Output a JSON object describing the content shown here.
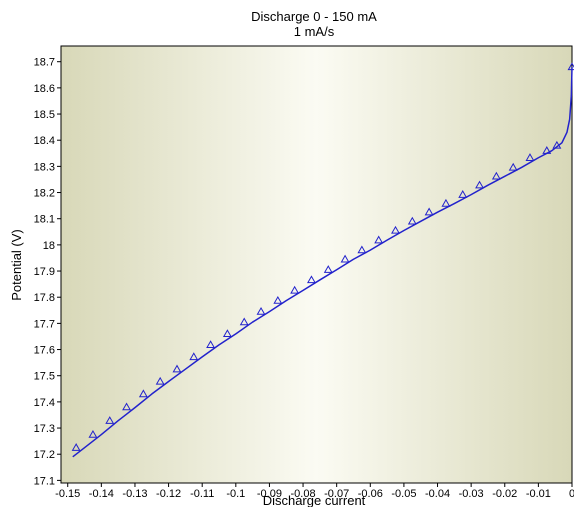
{
  "chart_data": {
    "type": "line",
    "title": "Discharge 0 - 150 mA",
    "subtitle": "1 mA/s",
    "xlabel": "Discharge current",
    "ylabel": "Potential (V)",
    "xlim": [
      -0.152,
      0.0
    ],
    "ylim": [
      17.09,
      18.76
    ],
    "x_ticks": [
      -0.15,
      -0.14,
      -0.13,
      -0.12,
      -0.11,
      -0.1,
      -0.09,
      -0.08,
      -0.07,
      -0.06,
      -0.05,
      -0.04,
      -0.03,
      -0.02,
      -0.01,
      0
    ],
    "x_tick_labels": [
      "-0.15",
      "-0.14",
      "-0.13",
      "-0.12",
      "-0.11",
      "-0.1",
      "-0.09",
      "-0.08",
      "-0.07",
      "-0.06",
      "-0.05",
      "-0.04",
      "-0.03",
      "-0.02",
      "-0.01",
      "0"
    ],
    "y_ticks": [
      17.1,
      17.2,
      17.3,
      17.4,
      17.5,
      17.6,
      17.7,
      17.8,
      17.9,
      18.0,
      18.1,
      18.2,
      18.3,
      18.4,
      18.5,
      18.6,
      18.7
    ],
    "y_tick_labels": [
      "17.1",
      "17.2",
      "17.3",
      "17.4",
      "17.5",
      "17.6",
      "17.7",
      "17.8",
      "17.9",
      "18",
      "18.1",
      "18.2",
      "18.3",
      "18.4",
      "18.5",
      "18.6",
      "18.7"
    ],
    "grid": false,
    "line_color": "#2222cc",
    "background_edge_color": "#d8d8b8",
    "background_center_color": "#fbfbf3",
    "series": [
      {
        "marker": "triangle",
        "line_x": [
          -0.1485,
          -0.145,
          -0.14,
          -0.135,
          -0.13,
          -0.125,
          -0.12,
          -0.115,
          -0.11,
          -0.105,
          -0.1,
          -0.095,
          -0.09,
          -0.085,
          -0.08,
          -0.075,
          -0.07,
          -0.065,
          -0.06,
          -0.055,
          -0.05,
          -0.045,
          -0.04,
          -0.035,
          -0.03,
          -0.025,
          -0.02,
          -0.015,
          -0.01,
          -0.006,
          -0.003,
          -0.0015,
          -0.0007,
          -0.0002,
          0.0
        ],
        "line_y": [
          17.19,
          17.225,
          17.275,
          17.328,
          17.378,
          17.43,
          17.478,
          17.525,
          17.572,
          17.618,
          17.66,
          17.705,
          17.745,
          17.787,
          17.826,
          17.866,
          17.905,
          17.945,
          17.98,
          18.018,
          18.055,
          18.09,
          18.125,
          18.158,
          18.192,
          18.228,
          18.262,
          18.296,
          18.333,
          18.36,
          18.39,
          18.43,
          18.48,
          18.57,
          18.68
        ],
        "marker_x": [
          -0.1475,
          -0.1425,
          -0.1375,
          -0.1325,
          -0.1275,
          -0.1225,
          -0.1175,
          -0.1125,
          -0.1075,
          -0.1025,
          -0.0975,
          -0.0925,
          -0.0875,
          -0.0825,
          -0.0775,
          -0.0725,
          -0.0675,
          -0.0625,
          -0.0575,
          -0.0525,
          -0.0475,
          -0.0425,
          -0.0375,
          -0.0325,
          -0.0275,
          -0.0225,
          -0.0175,
          -0.0125,
          -0.0075,
          -0.0045,
          0.0
        ],
        "marker_y": [
          17.225,
          17.275,
          17.328,
          17.38,
          17.43,
          17.478,
          17.525,
          17.572,
          17.618,
          17.66,
          17.705,
          17.745,
          17.787,
          17.826,
          17.866,
          17.905,
          17.945,
          17.98,
          18.018,
          18.055,
          18.09,
          18.125,
          18.158,
          18.192,
          18.228,
          18.262,
          18.296,
          18.333,
          18.36,
          18.38,
          18.68
        ]
      }
    ]
  }
}
